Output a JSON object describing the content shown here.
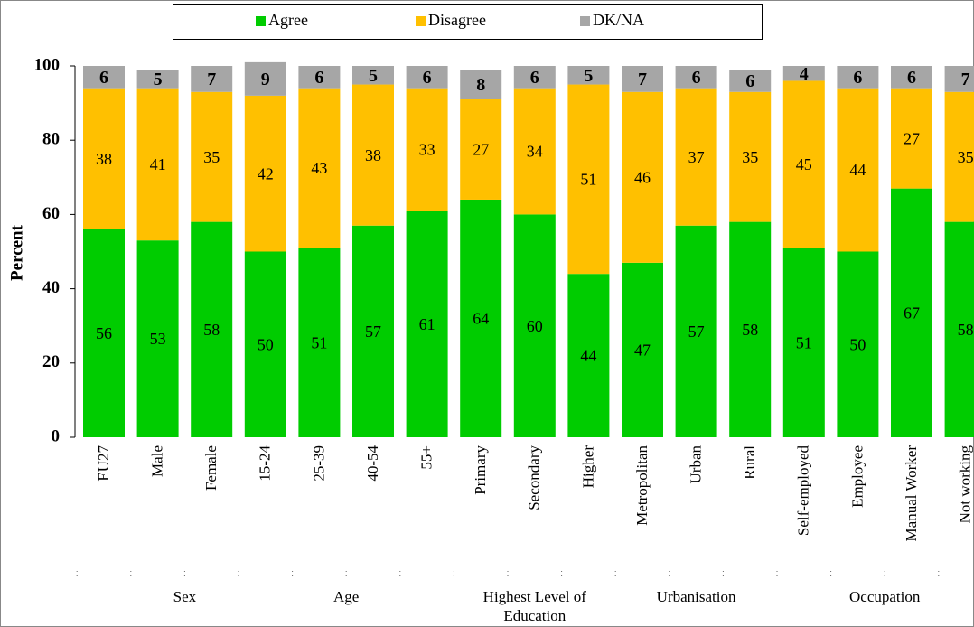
{
  "chart_data": {
    "type": "stacked-bar",
    "y_label": "Percent",
    "categories": [
      "EU27",
      "Male",
      "Female",
      "15-24",
      "25-39",
      "40-54",
      "55+",
      "Primary",
      "Secondary",
      "Higher",
      "Metropolitan",
      "Urban",
      "Rural",
      "Self-employed",
      "Employee",
      "Manual Worker",
      "Not working"
    ],
    "groups": [
      "Sex",
      "Age",
      "Highest Level of Education",
      "Urbanisation",
      "Occupation"
    ],
    "series": [
      {
        "name": "Agree",
        "color": "#00cc00",
        "values": [
          56,
          53,
          58,
          50,
          51,
          57,
          61,
          64,
          60,
          44,
          47,
          57,
          58,
          51,
          50,
          67,
          58
        ]
      },
      {
        "name": "Disagree",
        "color": "#ffc000",
        "values": [
          38,
          41,
          35,
          42,
          43,
          38,
          33,
          27,
          34,
          51,
          46,
          37,
          35,
          45,
          44,
          27,
          35
        ]
      },
      {
        "name": "DK/NA",
        "color": "#a6a6a6",
        "values": [
          6,
          5,
          7,
          9,
          6,
          5,
          6,
          8,
          6,
          5,
          7,
          6,
          6,
          4,
          6,
          6,
          7
        ]
      }
    ],
    "ylim": [
      0,
      100
    ],
    "yticks": [
      0,
      20,
      40,
      60,
      80,
      100
    ],
    "legend": "top"
  }
}
